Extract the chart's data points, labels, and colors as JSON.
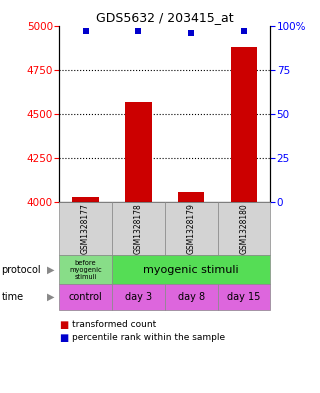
{
  "title": "GDS5632 / 203415_at",
  "samples": [
    "GSM1328177",
    "GSM1328178",
    "GSM1328179",
    "GSM1328180"
  ],
  "bar_values": [
    4030,
    4570,
    4060,
    4880
  ],
  "percentile_values": [
    97,
    97,
    96,
    97
  ],
  "ylim_left": [
    4000,
    5000
  ],
  "ylim_right": [
    0,
    100
  ],
  "yticks_left": [
    4000,
    4250,
    4500,
    4750,
    5000
  ],
  "yticks_right": [
    0,
    25,
    50,
    75,
    100
  ],
  "bar_color": "#cc0000",
  "dot_color": "#0000cc",
  "protocol_col0_label": "before\nmyogenic\nstimuli",
  "protocol_col1_label": "myogenic stimuli",
  "protocol_col0_color": "#88dd88",
  "protocol_col1_color": "#55dd55",
  "time_labels": [
    "control",
    "day 3",
    "day 8",
    "day 15"
  ],
  "time_color": "#dd66dd",
  "sample_box_color": "#d3d3d3",
  "legend_bar_label": "transformed count",
  "legend_dot_label": "percentile rank within the sample",
  "label_protocol": "protocol",
  "label_time": "time",
  "grid_dotted_at": [
    4250,
    4500,
    4750
  ]
}
